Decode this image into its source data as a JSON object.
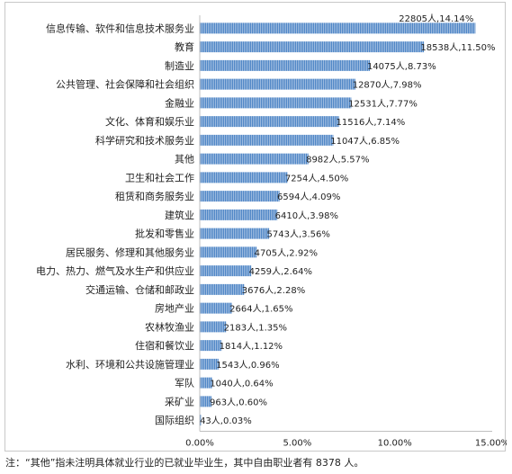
{
  "chart_data": {
    "type": "bar",
    "orientation": "horizontal",
    "categories": [
      "信息传输、软件和信息技术服务业",
      "教育",
      "制造业",
      "公共管理、社会保障和社会组织",
      "金融业",
      "文化、体育和娱乐业",
      "科学研究和技术服务业",
      "其他",
      "卫生和社会工作",
      "租赁和商务服务业",
      "建筑业",
      "批发和零售业",
      "居民服务、修理和其他服务业",
      "电力、热力、燃气及水生产和供应业",
      "交通运输、仓储和邮政业",
      "房地产业",
      "农林牧渔业",
      "住宿和餐饮业",
      "水利、环境和公共设施管理业",
      "军队",
      "采矿业",
      "国际组织"
    ],
    "values": [
      14.14,
      11.5,
      8.73,
      7.98,
      7.77,
      7.14,
      6.85,
      5.57,
      4.5,
      4.09,
      3.98,
      3.56,
      2.92,
      2.64,
      2.28,
      1.65,
      1.35,
      1.12,
      0.96,
      0.64,
      0.6,
      0.03
    ],
    "data_labels": [
      "22805人,14.14%",
      "18538人,11.50%",
      "14075人,8.73%",
      "12870人,7.98%",
      "12531人,7.77%",
      "11516人,7.14%",
      "11047人,6.85%",
      "8982人,5.57%",
      "7254人,4.50%",
      "6594人,4.09%",
      "6410人,3.98%",
      "5743人,3.56%",
      "4705人,2.92%",
      "4259人,2.64%",
      "3676人,2.28%",
      "2664人,1.65%",
      "2183人,1.35%",
      "1814人,1.12%",
      "1543人,0.96%",
      "1040人,0.64%",
      "963人,0.60%",
      "43人,0.03%"
    ],
    "xlim": [
      0,
      15
    ],
    "xticks": [
      0,
      5,
      10,
      15
    ],
    "xtick_labels": [
      "0.00%",
      "5.00%",
      "10.00%",
      "15.00%"
    ],
    "grid": false,
    "legend": "none",
    "colors": {
      "bar": "#4f86c6",
      "bar_stripe": "#ffffff",
      "axis": "#bfbfbf"
    }
  },
  "footnote": "注：“其他”指未注明具体就业行业的已就业毕业生，其中自由职业者有 8378 人。"
}
